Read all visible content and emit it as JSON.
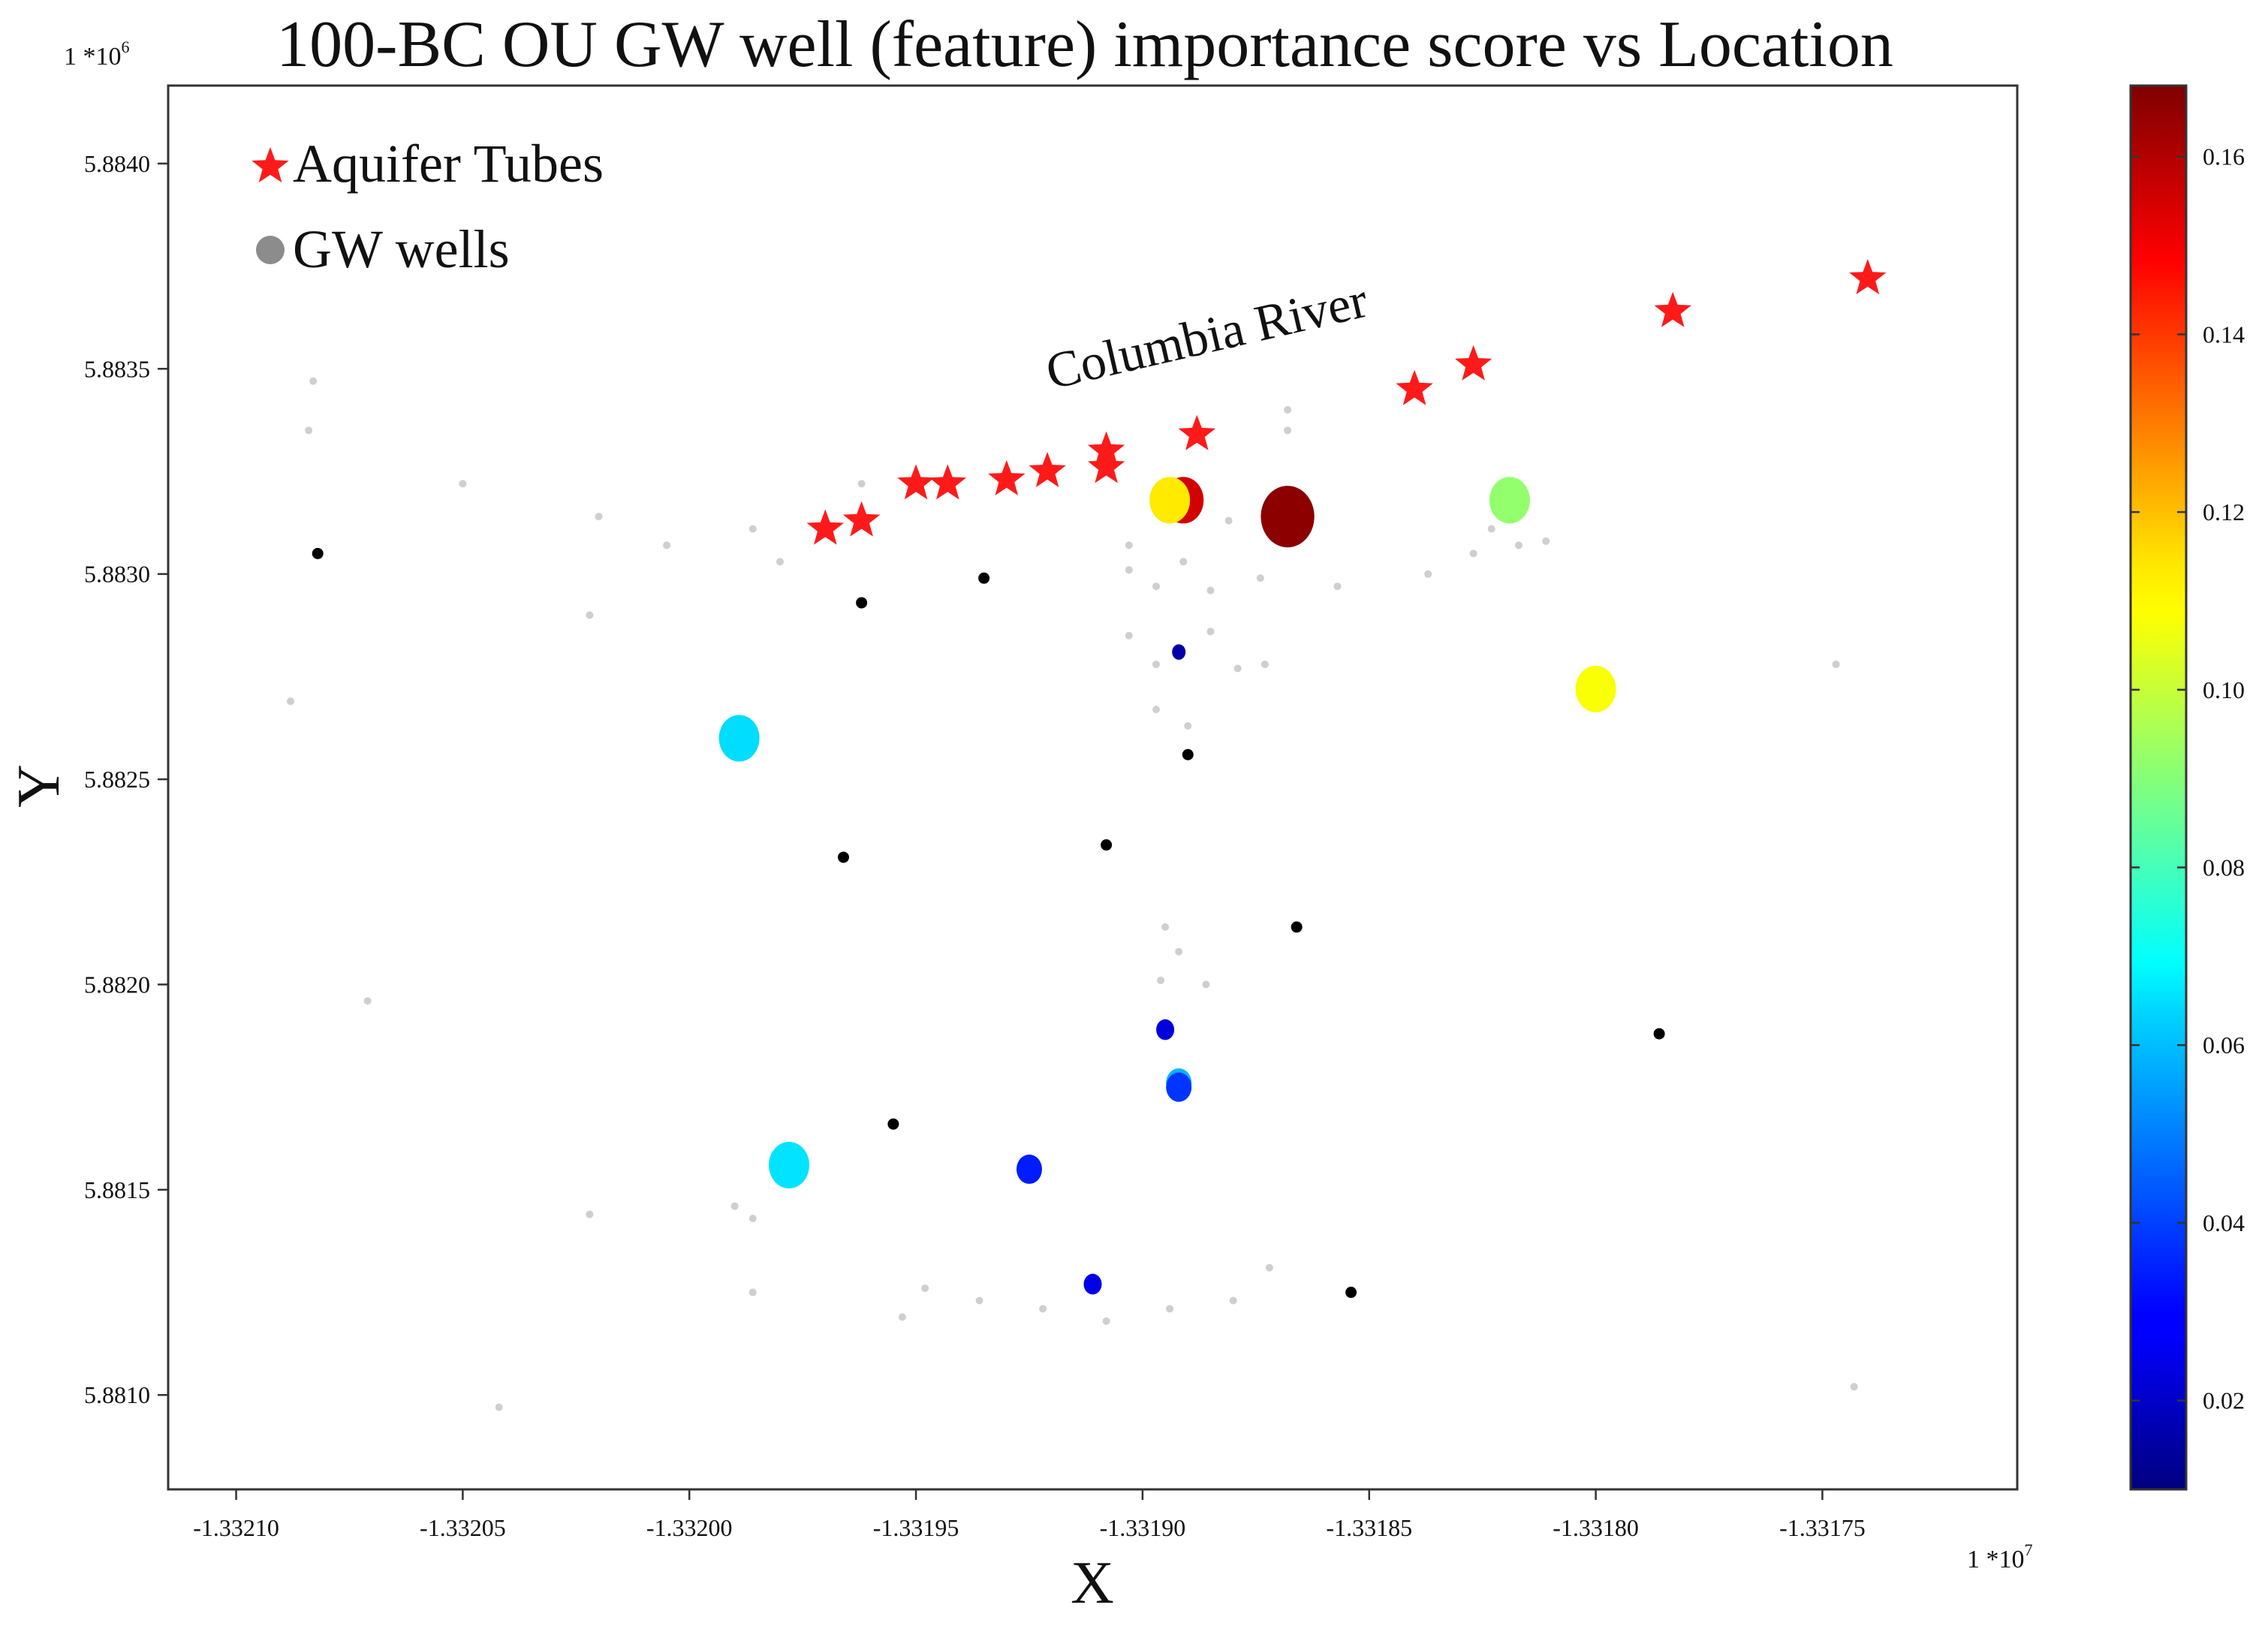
{
  "chart_data": {
    "type": "scatter",
    "title": "100-BC OU GW well (feature) importance score vs Location",
    "xlabel": "X",
    "ylabel": "Y",
    "x_multiplier": "1 *10^7",
    "y_multiplier": "1 *10^6",
    "x_mult_base": "1 *10",
    "x_mult_exp": "7",
    "y_mult_base": "1 *10",
    "y_mult_exp": "6",
    "xlim": [
      -1.332115,
      -1.331707
    ],
    "ylim": [
      5.88077,
      5.88419
    ],
    "x_ticks": [
      -1.3321,
      -1.33205,
      -1.332,
      -1.33195,
      -1.3319,
      -1.33185,
      -1.3318,
      -1.33175
    ],
    "x_tick_labels": [
      "-1.33210",
      "-1.33205",
      "-1.33200",
      "-1.33195",
      "-1.33190",
      "-1.33185",
      "-1.33180",
      "-1.33175"
    ],
    "y_ticks": [
      5.881,
      5.8815,
      5.882,
      5.8825,
      5.883,
      5.8835,
      5.884
    ],
    "y_tick_labels": [
      "5.8810",
      "5.8815",
      "5.8820",
      "5.8825",
      "5.8830",
      "5.8835",
      "5.8840"
    ],
    "grid": false,
    "legend": {
      "placement": "top-left",
      "entries": [
        {
          "label": "Aquifer Tubes",
          "marker": "star",
          "color": "#ff1a1a"
        },
        {
          "label": "GW wells",
          "marker": "circle",
          "color": "#8c8c8c"
        }
      ]
    },
    "annotation": {
      "text": "Columbia River",
      "x": -1.331885,
      "y": 5.88354,
      "rotation_deg": -13
    },
    "colorbar": {
      "min": 0.01,
      "max": 0.168,
      "ticks": [
        0.02,
        0.04,
        0.06,
        0.08,
        0.1,
        0.12,
        0.14,
        0.16
      ],
      "tick_labels": [
        "0.02",
        "0.04",
        "0.06",
        "0.08",
        "0.10",
        "0.12",
        "0.14",
        "0.16"
      ],
      "colormap": "jet"
    },
    "aquifer_tubes": [
      {
        "x": -1.33197,
        "y": 5.88311
      },
      {
        "x": -1.331962,
        "y": 5.88313
      },
      {
        "x": -1.33195,
        "y": 5.88322
      },
      {
        "x": -1.331943,
        "y": 5.88322
      },
      {
        "x": -1.33193,
        "y": 5.88323
      },
      {
        "x": -1.331921,
        "y": 5.88325
      },
      {
        "x": -1.331908,
        "y": 5.8833
      },
      {
        "x": -1.331908,
        "y": 5.88326
      },
      {
        "x": -1.331888,
        "y": 5.88334
      },
      {
        "x": -1.33184,
        "y": 5.88345
      },
      {
        "x": -1.331827,
        "y": 5.88351
      },
      {
        "x": -1.331783,
        "y": 5.88364
      },
      {
        "x": -1.33174,
        "y": 5.88372
      }
    ],
    "scored_wells": [
      {
        "x": -1.331891,
        "y": 5.88318,
        "score": 0.155,
        "size": "large"
      },
      {
        "x": -1.331894,
        "y": 5.88318,
        "score": 0.112,
        "size": "large"
      },
      {
        "x": -1.331868,
        "y": 5.88314,
        "score": 0.166,
        "size": "large"
      },
      {
        "x": -1.331819,
        "y": 5.88318,
        "score": 0.092,
        "size": "large"
      },
      {
        "x": -1.3318,
        "y": 5.88272,
        "score": 0.108,
        "size": "large"
      },
      {
        "x": -1.331989,
        "y": 5.8826,
        "score": 0.064,
        "size": "large"
      },
      {
        "x": -1.331978,
        "y": 5.88156,
        "score": 0.065,
        "size": "large"
      },
      {
        "x": -1.331892,
        "y": 5.88176,
        "score": 0.058,
        "size": "medium"
      },
      {
        "x": -1.331892,
        "y": 5.88175,
        "score": 0.038,
        "size": "medium"
      },
      {
        "x": -1.331925,
        "y": 5.88155,
        "score": 0.034,
        "size": "medium"
      },
      {
        "x": -1.331895,
        "y": 5.88189,
        "score": 0.024,
        "size": "small"
      },
      {
        "x": -1.331911,
        "y": 5.88127,
        "score": 0.026,
        "size": "small"
      },
      {
        "x": -1.331892,
        "y": 5.88281,
        "score": 0.016,
        "size": "tiny"
      }
    ],
    "zero_score_wells": [
      {
        "x": -1.332082,
        "y": 5.88305
      },
      {
        "x": -1.331962,
        "y": 5.88293
      },
      {
        "x": -1.331935,
        "y": 5.88299
      },
      {
        "x": -1.33189,
        "y": 5.88256
      },
      {
        "x": -1.331908,
        "y": 5.88234
      },
      {
        "x": -1.331966,
        "y": 5.88231
      },
      {
        "x": -1.331866,
        "y": 5.88214
      },
      {
        "x": -1.331786,
        "y": 5.88188
      },
      {
        "x": -1.331955,
        "y": 5.88166
      },
      {
        "x": -1.331854,
        "y": 5.88125
      }
    ],
    "faint_wells": [
      {
        "x": -1.332083,
        "y": 5.88347
      },
      {
        "x": -1.332084,
        "y": 5.88335
      },
      {
        "x": -1.33205,
        "y": 5.88322
      },
      {
        "x": -1.33202,
        "y": 5.88314
      },
      {
        "x": -1.332005,
        "y": 5.88307
      },
      {
        "x": -1.33198,
        "y": 5.88303
      },
      {
        "x": -1.331962,
        "y": 5.88322
      },
      {
        "x": -1.332088,
        "y": 5.88269
      },
      {
        "x": -1.332071,
        "y": 5.88196
      },
      {
        "x": -1.332022,
        "y": 5.8829
      },
      {
        "x": -1.331986,
        "y": 5.88311
      },
      {
        "x": -1.33199,
        "y": 5.88146
      },
      {
        "x": -1.331986,
        "y": 5.88125
      },
      {
        "x": -1.331986,
        "y": 5.88143
      },
      {
        "x": -1.332022,
        "y": 5.88144
      },
      {
        "x": -1.332042,
        "y": 5.88097
      },
      {
        "x": -1.331953,
        "y": 5.88119
      },
      {
        "x": -1.331948,
        "y": 5.88126
      },
      {
        "x": -1.331936,
        "y": 5.88123
      },
      {
        "x": -1.331922,
        "y": 5.88121
      },
      {
        "x": -1.331908,
        "y": 5.88118
      },
      {
        "x": -1.331894,
        "y": 5.88121
      },
      {
        "x": -1.33188,
        "y": 5.88123
      },
      {
        "x": -1.331872,
        "y": 5.88131
      },
      {
        "x": -1.331903,
        "y": 5.88301
      },
      {
        "x": -1.331897,
        "y": 5.88297
      },
      {
        "x": -1.331891,
        "y": 5.88303
      },
      {
        "x": -1.331885,
        "y": 5.88296
      },
      {
        "x": -1.331903,
        "y": 5.88285
      },
      {
        "x": -1.331897,
        "y": 5.88278
      },
      {
        "x": -1.331885,
        "y": 5.88286
      },
      {
        "x": -1.331879,
        "y": 5.88277
      },
      {
        "x": -1.331897,
        "y": 5.88267
      },
      {
        "x": -1.33189,
        "y": 5.88263
      },
      {
        "x": -1.331903,
        "y": 5.88307
      },
      {
        "x": -1.331874,
        "y": 5.88299
      },
      {
        "x": -1.331881,
        "y": 5.88313
      },
      {
        "x": -1.331895,
        "y": 5.88214
      },
      {
        "x": -1.331892,
        "y": 5.88208
      },
      {
        "x": -1.331886,
        "y": 5.882
      },
      {
        "x": -1.331896,
        "y": 5.88201
      },
      {
        "x": -1.331868,
        "y": 5.88335
      },
      {
        "x": -1.331868,
        "y": 5.8834
      },
      {
        "x": -1.331837,
        "y": 5.883
      },
      {
        "x": -1.331827,
        "y": 5.88305
      },
      {
        "x": -1.331817,
        "y": 5.88307
      },
      {
        "x": -1.331811,
        "y": 5.88308
      },
      {
        "x": -1.331823,
        "y": 5.88311
      },
      {
        "x": -1.331857,
        "y": 5.88297
      },
      {
        "x": -1.331873,
        "y": 5.88278
      },
      {
        "x": -1.331747,
        "y": 5.88278
      },
      {
        "x": -1.331743,
        "y": 5.88102
      }
    ]
  }
}
